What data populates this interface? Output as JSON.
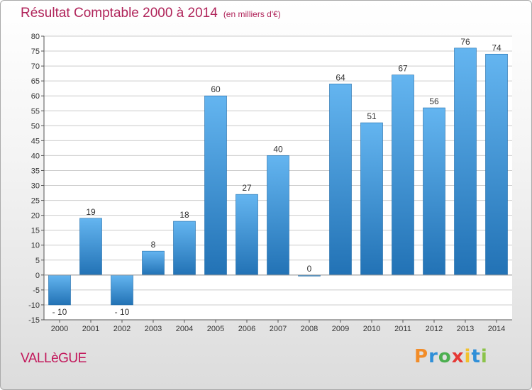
{
  "header": {
    "title": "Résultat Comptable 2000 à 2014",
    "subtitle": "(en milliers d'€)"
  },
  "footer": {
    "commune": "VALLèGUE",
    "logo_text": "Proxiti"
  },
  "colors": {
    "bar_light": "#64b5f0",
    "bar_dark": "#2272b5",
    "accent": "#b0245a",
    "grid": "#cccccc"
  },
  "chart_data": {
    "type": "bar",
    "title": "Résultat Comptable 2000 à 2014",
    "subtitle": "(en milliers d'€)",
    "categories": [
      "2000",
      "2001",
      "2002",
      "2003",
      "2004",
      "2005",
      "2006",
      "2007",
      "2008",
      "2009",
      "2010",
      "2011",
      "2012",
      "2013",
      "2014"
    ],
    "values": [
      -10,
      19,
      -10,
      8,
      18,
      60,
      27,
      40,
      0,
      64,
      51,
      67,
      56,
      76,
      74
    ],
    "ylim": [
      -15,
      80
    ],
    "yticks": [
      -15,
      -10,
      -5,
      0,
      5,
      10,
      15,
      20,
      25,
      30,
      35,
      40,
      45,
      50,
      55,
      60,
      65,
      70,
      75,
      80
    ],
    "grid": true,
    "legend": "none"
  }
}
